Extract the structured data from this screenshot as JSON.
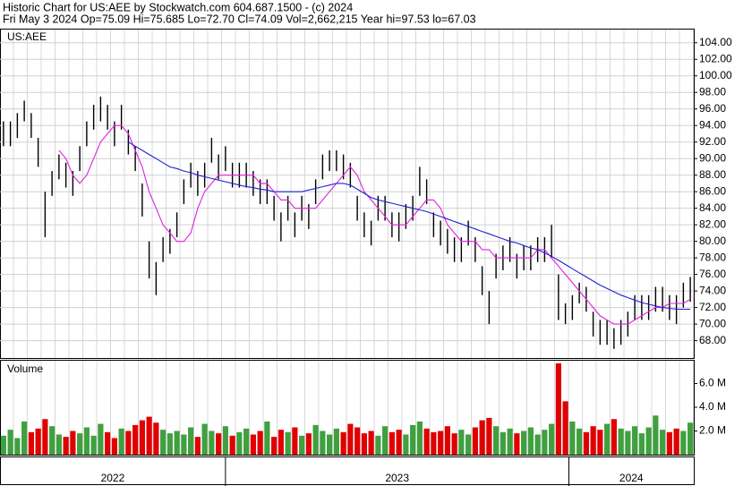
{
  "header": {
    "line1": "Historic Chart for US:AEE by Stockwatch.com 604.687.1500 - (c) 2024",
    "line2": "Fri May  3 2024  Op=75.09  Hi=75.685  Lo=72.70  Cl=74.09  Vol=2,662,215  Year hi=97.53  lo=67.03"
  },
  "chart_data": [
    {
      "type": "range-bar",
      "label": "US:AEE",
      "color": "#000000",
      "ylim": [
        65.9,
        105.6
      ],
      "yticks": [
        {
          "value": 68,
          "label": "68.00"
        },
        {
          "value": 70,
          "label": "70.00"
        },
        {
          "value": 72,
          "label": "72.00"
        },
        {
          "value": 74,
          "label": "74.00"
        },
        {
          "value": 76,
          "label": "76.00"
        },
        {
          "value": 78,
          "label": "78.00"
        },
        {
          "value": 80,
          "label": "80.00"
        },
        {
          "value": 82,
          "label": "82.00"
        },
        {
          "value": 84,
          "label": "84.00"
        },
        {
          "value": 86,
          "label": "86.00"
        },
        {
          "value": 88,
          "label": "88.00"
        },
        {
          "value": 90,
          "label": "90.00"
        },
        {
          "value": 92,
          "label": "92.00"
        },
        {
          "value": 94,
          "label": "94.00"
        },
        {
          "value": 96,
          "label": "96.00"
        },
        {
          "value": 98,
          "label": "98.00"
        },
        {
          "value": 100,
          "label": "100.00"
        },
        {
          "value": 102,
          "label": "102.00"
        },
        {
          "value": 104,
          "label": "104.00"
        }
      ],
      "grid": true,
      "highs": [
        94.5,
        94.5,
        95.5,
        97,
        95.5,
        92.5,
        86,
        88.5,
        90.5,
        89.5,
        88.5,
        91.5,
        94.5,
        96.5,
        97.5,
        96.5,
        94.5,
        96.5,
        93.5,
        91.5,
        87,
        80,
        77.5,
        80.5,
        81.5,
        83.5,
        87.5,
        89.5,
        88.5,
        89.5,
        92.5,
        90.5,
        91.5,
        89.5,
        89.5,
        89.5,
        88.5,
        87.5,
        87.5,
        85.5,
        83.5,
        85.5,
        83.5,
        85.5,
        84.5,
        87.5,
        90.5,
        91,
        91,
        90.5,
        89.5,
        85.5,
        83.5,
        82.5,
        85.5,
        85.5,
        83.5,
        83.5,
        84.5,
        85.5,
        89,
        87.5,
        83.5,
        82.5,
        81.5,
        80.5,
        80.5,
        82.5,
        80.5,
        77,
        74,
        78.5,
        79.5,
        80.5,
        78.5,
        79.5,
        79.5,
        80.5,
        80.5,
        82,
        76,
        72.5,
        73.5,
        75,
        74.5,
        71.5,
        70.5,
        70.5,
        69.5,
        70.5,
        71.5,
        73.5,
        73.5,
        73.5,
        74.5,
        74.5,
        73.5,
        73.5,
        75,
        75.7
      ],
      "lows": [
        91.5,
        91.5,
        92.5,
        94.5,
        92.5,
        89,
        80.5,
        85.5,
        87.5,
        86.5,
        85.5,
        88.5,
        91.5,
        93.5,
        94.5,
        93.5,
        91.5,
        93.5,
        90.5,
        88.5,
        83,
        75.5,
        73.5,
        77.5,
        78.5,
        80.5,
        84.5,
        86.5,
        85.5,
        86.5,
        89.5,
        87.5,
        88.5,
        86.5,
        86.5,
        86.5,
        85.5,
        84.5,
        84.5,
        82.5,
        80,
        82.5,
        80.5,
        82.5,
        81.5,
        84.5,
        87.5,
        88.5,
        88.5,
        87.5,
        86.5,
        82.5,
        80.5,
        79.5,
        82.5,
        82.5,
        80.5,
        80,
        81.5,
        82.5,
        85.5,
        84.5,
        80.5,
        79.5,
        78.5,
        77.5,
        77.5,
        79.5,
        77.5,
        73.5,
        70,
        75.5,
        76.5,
        77.5,
        75.5,
        76.5,
        76.5,
        77.5,
        77.5,
        78,
        70.5,
        70,
        70.5,
        72.5,
        71.5,
        68.5,
        67.5,
        67.5,
        67,
        67.5,
        68.5,
        70.5,
        70.5,
        70.5,
        71.5,
        71.5,
        70.5,
        70,
        72,
        72.7
      ],
      "moving_averages": [
        {
          "color": "#e020e0",
          "values": [
            null,
            null,
            null,
            null,
            null,
            null,
            null,
            null,
            91,
            90,
            88,
            87,
            88,
            90,
            92,
            93,
            94,
            94,
            93,
            91,
            89,
            86,
            84,
            82,
            81,
            80,
            80,
            81,
            84,
            86,
            87,
            88,
            88,
            88,
            88,
            88,
            88,
            87,
            87,
            86,
            85,
            85,
            84,
            84,
            84,
            84,
            85,
            86,
            87,
            88,
            89,
            88,
            86,
            85,
            84,
            83,
            82,
            82,
            82,
            83,
            84,
            85,
            85,
            84,
            82,
            81,
            80,
            80,
            80,
            79,
            79,
            78,
            78,
            78,
            78,
            78,
            78,
            79,
            79,
            78,
            77,
            76,
            75,
            74,
            73,
            72,
            71,
            70.5,
            70,
            70,
            70,
            70.5,
            71,
            71.5,
            72,
            72,
            72.5,
            72.5,
            72.5,
            73
          ]
        },
        {
          "color": "#2020d0",
          "values": [
            null,
            null,
            null,
            null,
            null,
            null,
            null,
            null,
            null,
            null,
            null,
            null,
            null,
            null,
            null,
            null,
            null,
            null,
            92,
            91.5,
            91,
            90.5,
            90,
            89.5,
            89,
            88.8,
            88.5,
            88.3,
            88,
            87.8,
            87.6,
            87.4,
            87.2,
            87,
            86.8,
            86.6,
            86.5,
            86.3,
            86.2,
            86,
            86,
            86,
            86,
            86,
            86.2,
            86.4,
            86.6,
            86.8,
            87,
            87,
            86.8,
            86.3,
            85.8,
            85.3,
            85,
            84.8,
            84.6,
            84.4,
            84.2,
            84,
            83.8,
            83.6,
            83.3,
            83,
            82.7,
            82.4,
            82.1,
            81.8,
            81.5,
            81.2,
            80.9,
            80.6,
            80.3,
            80,
            79.8,
            79.5,
            79.2,
            79,
            78.6,
            78.2,
            77.7,
            77.2,
            76.7,
            76.2,
            75.7,
            75.2,
            74.7,
            74.3,
            73.9,
            73.5,
            73.2,
            72.9,
            72.6,
            72.4,
            72.2,
            72,
            71.9,
            71.8,
            71.8,
            71.8
          ]
        }
      ]
    },
    {
      "type": "bar",
      "label": "Volume",
      "up_color": "#40a040",
      "down_color": "#e00000",
      "ylim": [
        0,
        8
      ],
      "yticks": [
        {
          "value": 2,
          "label": "2.0 M"
        },
        {
          "value": 4,
          "label": "4.0 M"
        },
        {
          "value": 6,
          "label": "6.0 M"
        }
      ],
      "values": [
        1.6,
        2.1,
        1.4,
        2.8,
        1.9,
        2.2,
        3.0,
        2.4,
        1.7,
        1.5,
        2.0,
        1.8,
        2.3,
        1.6,
        2.6,
        1.9,
        1.4,
        2.2,
        2.0,
        2.5,
        2.9,
        3.2,
        2.7,
        2.1,
        1.8,
        2.0,
        1.7,
        2.3,
        1.5,
        2.6,
        2.0,
        1.8,
        2.4,
        1.6,
        1.9,
        2.2,
        1.7,
        2.0,
        2.8,
        1.5,
        2.1,
        1.9,
        2.3,
        1.6,
        1.8,
        2.5,
        2.0,
        1.7,
        2.2,
        1.9,
        2.6,
        2.3,
        1.8,
        2.0,
        1.6,
        2.4,
        1.9,
        2.1,
        1.7,
        2.5,
        2.8,
        2.2,
        1.9,
        2.0,
        2.4,
        1.8,
        2.1,
        1.7,
        2.3,
        2.9,
        3.1,
        2.4,
        1.9,
        2.2,
        1.8,
        2.0,
        2.3,
        1.7,
        2.1,
        2.6,
        7.7,
        4.5,
        2.8,
        2.2,
        1.9,
        2.4,
        2.1,
        2.6,
        3.0,
        2.2,
        2.0,
        2.4,
        1.8,
        2.3,
        3.3,
        2.1,
        1.9,
        2.2,
        2.0,
        2.7
      ],
      "xticks": [
        {
          "value": 0,
          "label": "2022"
        },
        {
          "value": 32.5,
          "label": "2023"
        },
        {
          "value": 82,
          "label": "2024"
        }
      ]
    }
  ]
}
